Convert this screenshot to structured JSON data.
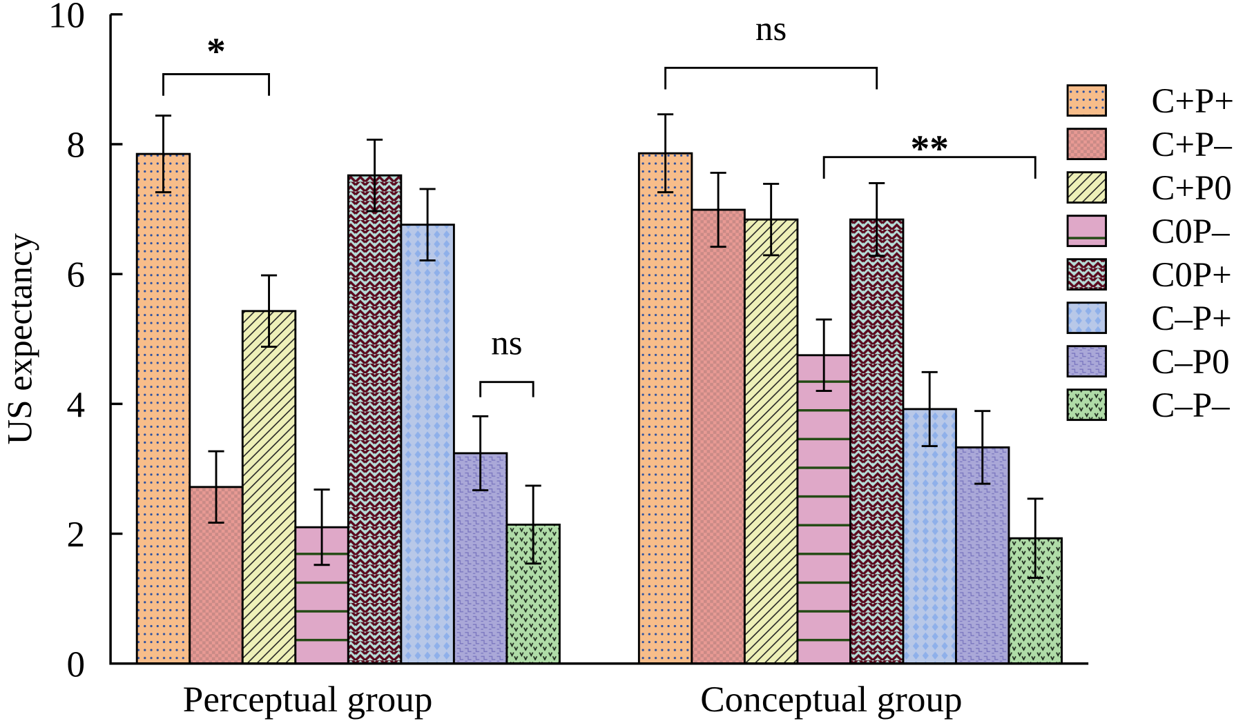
{
  "chart_data": {
    "type": "bar",
    "ylabel": "US expectancy",
    "ylim": [
      0,
      10
    ],
    "yticks": [
      "0",
      "2",
      "4",
      "6",
      "8",
      "10"
    ],
    "categories": [
      "Perceptual group",
      "Conceptual group"
    ],
    "grid": false,
    "legend_placement": "right",
    "series": [
      {
        "name": "C+P+",
        "values": [
          7.85,
          7.86
        ],
        "errors": [
          0.59,
          0.6
        ],
        "color": "#f7bd8a",
        "pattern_color": "#2a4fa0"
      },
      {
        "name": "C+P–",
        "values": [
          2.72,
          6.99
        ],
        "errors": [
          0.55,
          0.57
        ],
        "color": "#e89a94",
        "pattern_color": "#c98a86"
      },
      {
        "name": "C+P0",
        "values": [
          5.43,
          6.84
        ],
        "errors": [
          0.55,
          0.55
        ],
        "color": "#eef0b8",
        "pattern_color": "#222222"
      },
      {
        "name": "C0P–",
        "values": [
          2.1,
          4.75
        ],
        "errors": [
          0.58,
          0.55
        ],
        "color": "#dfa8c8",
        "pattern_color": "#234a14"
      },
      {
        "name": "C0P+",
        "values": [
          7.52,
          6.84
        ],
        "errors": [
          0.55,
          0.56
        ],
        "color": "#b7ddd8",
        "pattern_color": "#5a0a1e"
      },
      {
        "name": "C–P+",
        "values": [
          6.76,
          3.92
        ],
        "errors": [
          0.55,
          0.57
        ],
        "color": "#b8c8e8",
        "pattern_color": "#8fb0ea"
      },
      {
        "name": "C–P0",
        "values": [
          3.24,
          3.33
        ],
        "errors": [
          0.57,
          0.56
        ],
        "color": "#aaa8d8",
        "pattern_color": "#7c78c0"
      },
      {
        "name": "C–P–",
        "values": [
          2.14,
          1.93
        ],
        "errors": [
          0.6,
          0.61
        ],
        "color": "#b0dca8",
        "pattern_color": "#1e2a1e"
      }
    ],
    "annotations": [
      {
        "text": "*",
        "group": 0,
        "from": 0,
        "to": 2
      },
      {
        "text": "ns",
        "group": 0,
        "from": 6,
        "to": 7
      },
      {
        "text": "ns",
        "group": 1,
        "from": 0,
        "to": 4
      },
      {
        "text": "**",
        "group": 1,
        "from": 3,
        "to": 7
      }
    ]
  }
}
